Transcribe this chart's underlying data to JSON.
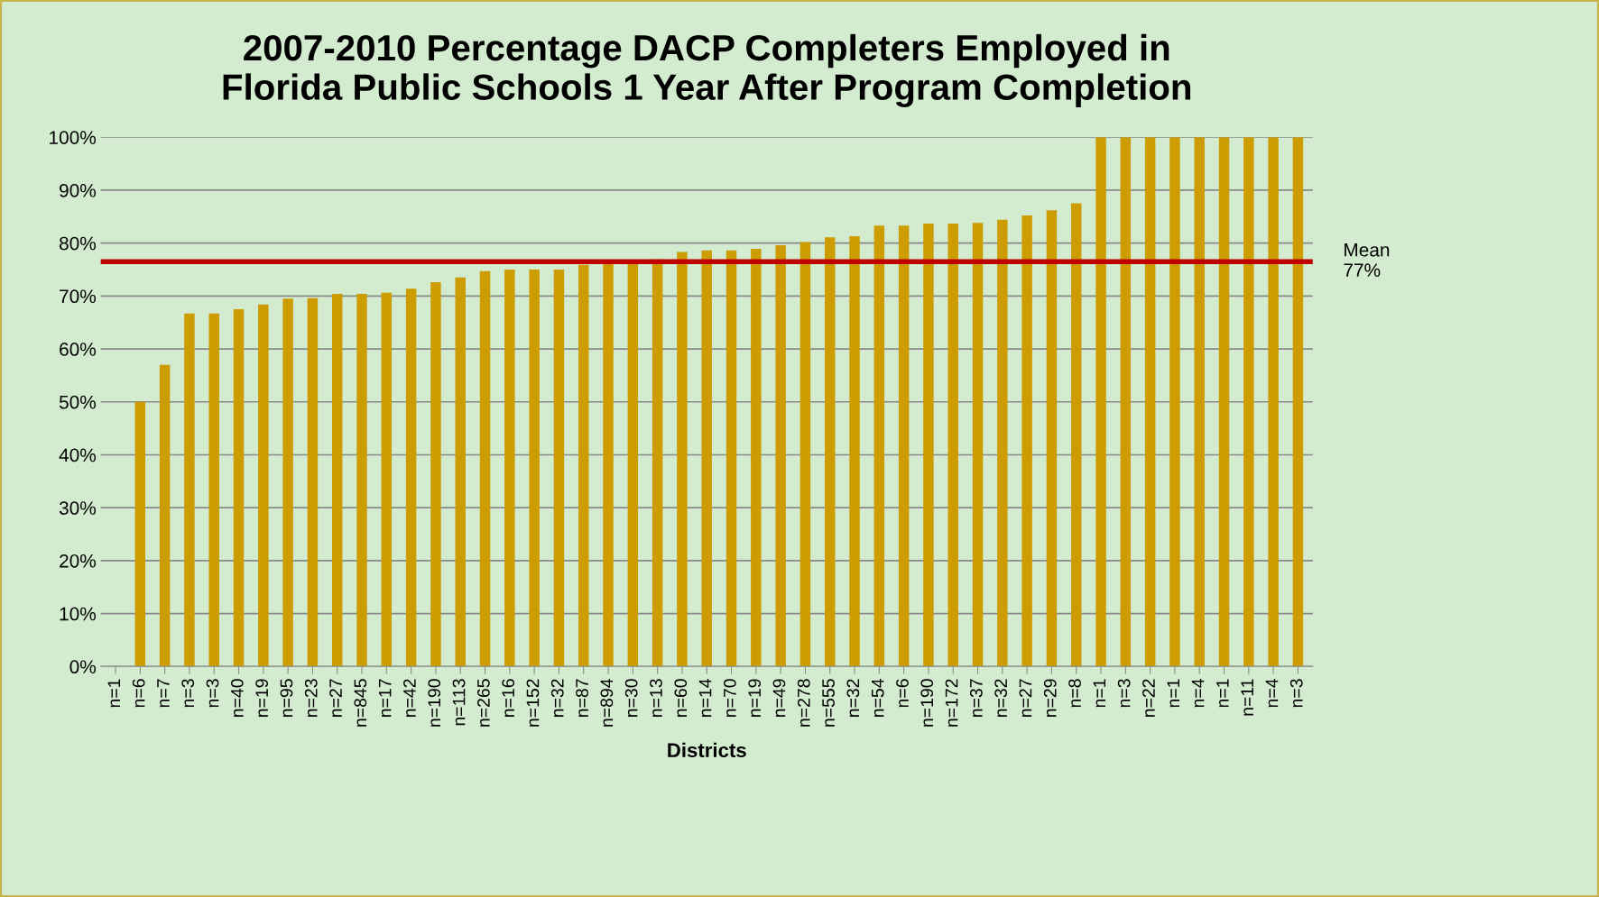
{
  "chart_data": {
    "type": "bar",
    "title": "2007-2010 Percentage DACP Completers Employed in\nFlorida Public Schools 1 Year After Program Completion",
    "xlabel": "Districts",
    "categories": [
      "n=1",
      "n=6",
      "n=7",
      "n=3",
      "n=3",
      "n=40",
      "n=19",
      "n=95",
      "n=23",
      "n=27",
      "n=845",
      "n=17",
      "n=42",
      "n=190",
      "n=113",
      "n=265",
      "n=16",
      "n=152",
      "n=32",
      "n=87",
      "n=894",
      "n=30",
      "n=13",
      "n=60",
      "n=14",
      "n=70",
      "n=19",
      "n=49",
      "n=278",
      "n=555",
      "n=32",
      "n=54",
      "n=6",
      "n=190",
      "n=172",
      "n=37",
      "n=32",
      "n=27",
      "n=29",
      "n=8",
      "n=1",
      "n=3",
      "n=22",
      "n=1",
      "n=4",
      "n=1",
      "n=11",
      "n=4",
      "n=3"
    ],
    "values": [
      0,
      50,
      57,
      66.7,
      66.7,
      67.5,
      68.4,
      69.5,
      69.6,
      70.4,
      70.4,
      70.6,
      71.4,
      72.6,
      73.5,
      74.7,
      75,
      75,
      75,
      75.9,
      76.3,
      76.7,
      76.9,
      78.3,
      78.6,
      78.6,
      78.9,
      79.6,
      80.2,
      81.1,
      81.3,
      83.3,
      83.3,
      83.7,
      83.7,
      83.8,
      84.4,
      85.2,
      86.2,
      87.5,
      100,
      100,
      100,
      100,
      100,
      100,
      100,
      100,
      100
    ],
    "color": "#cc9c00",
    "ylim": [
      0,
      100
    ],
    "yticks": [
      {
        "value": 0,
        "label": "0%"
      },
      {
        "value": 10,
        "label": "10%"
      },
      {
        "value": 20,
        "label": "20%"
      },
      {
        "value": 30,
        "label": "30%"
      },
      {
        "value": 40,
        "label": "40%"
      },
      {
        "value": 50,
        "label": "50%"
      },
      {
        "value": 60,
        "label": "60%"
      },
      {
        "value": 70,
        "label": "70%"
      },
      {
        "value": 80,
        "label": "80%"
      },
      {
        "value": 90,
        "label": "90%"
      },
      {
        "value": 100,
        "label": "100%"
      }
    ],
    "grid": "y",
    "ref_lines": [
      {
        "axis": "y",
        "value": 76.5,
        "label": "Mean\n77%",
        "color": "#c00000"
      }
    ]
  }
}
